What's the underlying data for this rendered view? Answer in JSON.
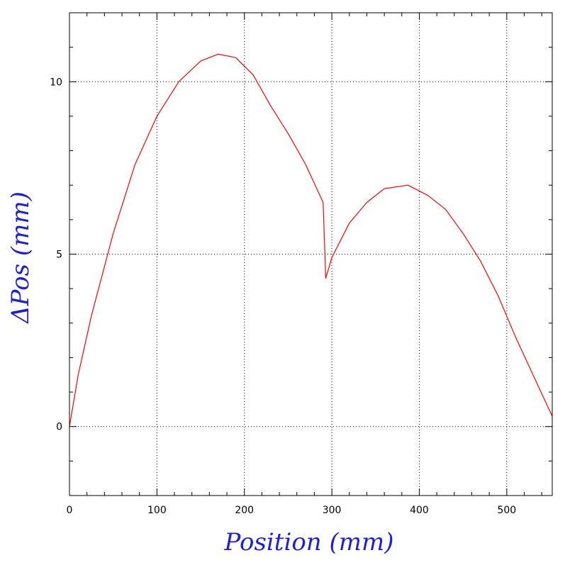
{
  "chart_data": {
    "type": "line",
    "title": "",
    "xlabel": "Position (mm)",
    "ylabel": "ΔPos (mm)",
    "label_color": "#1f1fd6",
    "line_color": "#ff0000",
    "xlim": [
      0,
      552
    ],
    "ylim": [
      -2,
      12
    ],
    "grid": true,
    "x_ticks": [
      0,
      100,
      200,
      300,
      400,
      500
    ],
    "x_tick_labels": [
      "0",
      "100",
      "200",
      "300",
      "400",
      "500"
    ],
    "y_ticks": [
      0,
      5,
      10
    ],
    "y_tick_labels": [
      "0",
      "5",
      "10"
    ],
    "x_minor_step": 20,
    "y_minor_step": 1,
    "series": [
      {
        "name": "",
        "x": [
          0,
          10,
          25,
          50,
          75,
          100,
          125,
          150,
          170,
          190,
          210,
          230,
          250,
          270,
          290,
          293,
          300,
          320,
          340,
          360,
          387,
          410,
          430,
          450,
          470,
          490,
          510,
          530,
          552
        ],
        "y": [
          0.0,
          1.5,
          3.2,
          5.6,
          7.6,
          9.0,
          10.0,
          10.6,
          10.8,
          10.7,
          10.2,
          9.3,
          8.5,
          7.6,
          6.5,
          4.3,
          4.9,
          5.9,
          6.5,
          6.9,
          7.0,
          6.7,
          6.3,
          5.6,
          4.8,
          3.8,
          2.6,
          1.5,
          0.3
        ]
      }
    ]
  }
}
